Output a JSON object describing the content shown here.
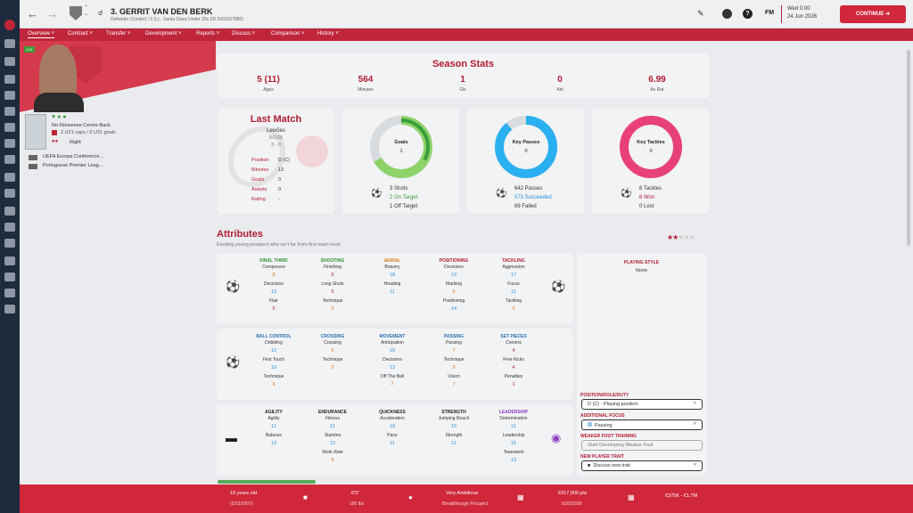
{
  "player": {
    "title": "3. GERRIT VAN DEN BERK",
    "subtitle": "Defender (Center) / 0 (L) - Santa Clara Under 23s (ID:2002267880)"
  },
  "topbar": {
    "datetime": "Wed 0:00",
    "date": "24 Jun 2026",
    "continue": "CONTINUE",
    "fm": "FM",
    "help": "?"
  },
  "tabs": [
    "Overview",
    "Contract",
    "Transfer",
    "Development",
    "Reports",
    "Discuss",
    "Comparison",
    "History"
  ],
  "profile": {
    "tag": "U21",
    "role_desc": "No-Nonsense Centre-Back",
    "caps": "2 U21 caps / 0 U21 goals",
    "foot": "Right",
    "comp1": "UEFA Europa Conference...",
    "comp2": "Portuguese Premier Leag..."
  },
  "season": {
    "title": "Season Stats",
    "stats": [
      {
        "v": "5 (11)",
        "l": "Apps"
      },
      {
        "v": "564",
        "l": "Minutes"
      },
      {
        "v": "1",
        "l": "Gls"
      },
      {
        "v": "0",
        "l": "Ast"
      },
      {
        "v": "6.99",
        "l": "Av Rat"
      }
    ]
  },
  "last_match": {
    "title": "Last Match",
    "opp": "Leixões",
    "date": "5/2/26",
    "score": "3 - 0",
    "rows": [
      {
        "l": "Position",
        "v": "D (C)"
      },
      {
        "l": "Minutes",
        "v": "13"
      },
      {
        "l": "Goals",
        "v": "0"
      },
      {
        "l": "Assists",
        "v": "0"
      },
      {
        "l": "Rating",
        "v": "-"
      }
    ]
  },
  "goals": {
    "label": "Goals",
    "value": "1",
    "a": "3 Shots",
    "b": "2 On Target",
    "c": "1 Off Target",
    "fill": 0.67
  },
  "passes": {
    "label": "Key Passes",
    "value": "0",
    "a": "642 Passes",
    "b": "573 Succeeded",
    "c": "69 Failed",
    "fill": 0.89
  },
  "tackles": {
    "label": "Key Tackles",
    "value": "0",
    "a": "6 Tackles",
    "b": "6 Won",
    "c": "0 Lost",
    "fill": 1.0
  },
  "attributes": {
    "title": "Attributes",
    "desc": "Exciting young prospect who isn't far from first team level.",
    "g1": [
      {
        "h": "FINAL THIRD",
        "c": "green",
        "items": [
          [
            "Composure",
            "8"
          ],
          [
            "Decisions",
            "13"
          ],
          [
            "Flair",
            "5"
          ]
        ]
      },
      {
        "h": "SHOOTING",
        "c": "green",
        "items": [
          [
            "Finishing",
            "5"
          ],
          [
            "Long Shots",
            "5"
          ],
          [
            "Technique",
            "9"
          ]
        ]
      },
      {
        "h": "AERIAL",
        "c": "orange",
        "items": [
          [
            "Bravery",
            "18"
          ],
          [
            "Heading",
            "11"
          ]
        ]
      },
      {
        "h": "POSITIONING",
        "c": "red",
        "items": [
          [
            "Decisions",
            "13"
          ],
          [
            "Marking",
            "8"
          ],
          [
            "Positioning",
            "14"
          ]
        ]
      },
      {
        "h": "TACKLING",
        "c": "red",
        "items": [
          [
            "Aggression",
            "17"
          ],
          [
            "Focus",
            "11"
          ],
          [
            "Tackling",
            "9"
          ]
        ]
      }
    ],
    "g2": [
      {
        "h": "BALL CONTROL",
        "c": "blue",
        "items": [
          [
            "Dribbling",
            "12"
          ],
          [
            "First Touch",
            "10"
          ],
          [
            "Technique",
            "9"
          ]
        ]
      },
      {
        "h": "CROSSING",
        "c": "blue",
        "items": [
          [
            "Crossing",
            "6"
          ],
          [
            "Technique",
            "9"
          ]
        ]
      },
      {
        "h": "MOVEMENT",
        "c": "blue",
        "items": [
          [
            "Anticipation",
            "10"
          ],
          [
            "Decisions",
            "13"
          ],
          [
            "Off The Ball",
            "7"
          ]
        ]
      },
      {
        "h": "PASSING",
        "c": "blue",
        "items": [
          [
            "Passing",
            "7"
          ],
          [
            "Technique",
            "9"
          ],
          [
            "Vision",
            "7"
          ]
        ]
      },
      {
        "h": "SET PIECES",
        "c": "blue",
        "items": [
          [
            "Corners",
            "4"
          ],
          [
            "Free Kicks",
            "4"
          ],
          [
            "Penalties",
            "1"
          ]
        ]
      }
    ],
    "g3": [
      {
        "h": "AGILITY",
        "c": "dark",
        "items": [
          [
            "Agility",
            "11"
          ],
          [
            "Balance",
            "13"
          ]
        ]
      },
      {
        "h": "ENDURANCE",
        "c": "dark",
        "items": [
          [
            "Fitness",
            "11"
          ],
          [
            "Stamina",
            "12"
          ],
          [
            "Work Rate",
            "8"
          ]
        ]
      },
      {
        "h": "QUICKNESS",
        "c": "dark",
        "items": [
          [
            "Acceleration",
            "10"
          ],
          [
            "Pace",
            "11"
          ]
        ]
      },
      {
        "h": "STRENGTH",
        "c": "dark",
        "items": [
          [
            "Jumping Reach",
            "15"
          ],
          [
            "Strength",
            "11"
          ]
        ]
      },
      {
        "h": "LEADERSHIP",
        "c": "purple",
        "items": [
          [
            "Determination",
            "11"
          ],
          [
            "Leadership",
            "15"
          ],
          [
            "Teamwork",
            "13"
          ]
        ]
      }
    ]
  },
  "style": {
    "title": "PLAYING STYLE",
    "value": "None",
    "prd_label": "POSITION/ROLE/DUTY",
    "prd": "D (C) - Playing position",
    "af_label": "ADDITIONAL FOCUS",
    "af": "Passing",
    "wft_label": "WEAKER FOOT TRAINING",
    "wft": "Start Developing Weaker Foot",
    "npt_label": "NEW PLAYER TRAIT",
    "npt": "Discuss new trait"
  },
  "footer": {
    "age": "19 years old",
    "dob": "(2/23/2007)",
    "height": "6'5\"",
    "weight": "189 lbs",
    "pers": "Very Ambitious",
    "pers2": "Breakthrough Prospect",
    "wage": "€417,000 p/a",
    "contract": "6/30/2028",
    "value": "€375K - €1.7M"
  },
  "colors": {
    "accent": "#c0263a",
    "green": "#3a9e3a",
    "blue": "#2ab0f0",
    "pink": "#e8417a"
  }
}
